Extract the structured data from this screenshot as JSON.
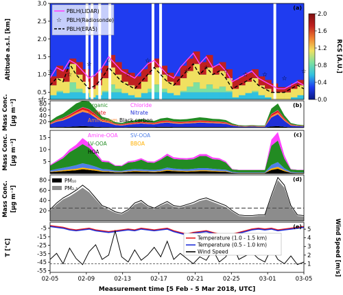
{
  "chart_data": [
    {
      "id": "a",
      "type": "heatmap",
      "panel_label": "(a)",
      "ylabel": "Altitude a.s.l. [km]",
      "yticks": [
        "3.0",
        "2.5",
        "2.0",
        "1.5",
        "1.0",
        "0.5",
        "sfc"
      ],
      "ylim": [
        0.3,
        3.0
      ],
      "colorbar": {
        "label": "RCS [A.U.]",
        "ticks": [
          "2.0",
          "1.6",
          "1.2",
          "0.8",
          "0.4",
          "0.0"
        ],
        "range": [
          0.0,
          2.0
        ]
      },
      "series": [
        {
          "name": "PBLH(LIDAR)",
          "color": "#ff44ff",
          "values": [
            0.9,
            1.2,
            1.1,
            1.4,
            1.3,
            1.1,
            0.9,
            1.0,
            1.2,
            1.5,
            1.3,
            1.1,
            1.0,
            0.9,
            1.1,
            1.3,
            1.4,
            1.2,
            1.0,
            0.9,
            1.2,
            1.4,
            1.6,
            1.3,
            1.5,
            1.2,
            1.3,
            1.1,
            0.8,
            0.9,
            1.0,
            1.1,
            0.9,
            0.8,
            0.7,
            0.6,
            0.6,
            0.7,
            0.8,
            0.7
          ]
        },
        {
          "name": "PBLH(Radiosonde)",
          "marker": "star",
          "values": [
            1.1,
            1.5,
            1.7,
            1.0,
            1.2,
            0.9,
            1.3,
            1.0,
            1.5,
            1.4,
            0.8,
            1.1,
            1.0,
            0.9,
            1.3,
            1.4,
            1.3,
            1.2,
            1.0,
            0.9,
            1.2,
            1.1,
            1.4,
            1.3,
            1.2,
            1.5,
            1.3,
            1.1,
            0.9,
            0.8,
            1.0,
            1.0,
            0.9,
            1.0,
            0.8,
            0.7,
            0.9,
            0.8,
            1.0,
            1.1
          ]
        },
        {
          "name": "PBLH(ERA5)",
          "color": "#000000",
          "dash": true,
          "values": [
            0.7,
            0.9,
            0.8,
            1.3,
            1.0,
            0.8,
            0.6,
            0.7,
            0.9,
            1.2,
            1.0,
            0.8,
            0.7,
            0.6,
            0.8,
            1.0,
            1.2,
            1.0,
            0.8,
            0.7,
            0.9,
            1.1,
            1.3,
            1.0,
            1.2,
            1.0,
            1.1,
            0.9,
            0.6,
            0.7,
            0.8,
            0.9,
            0.7,
            0.6,
            0.5,
            0.5,
            0.5,
            0.6,
            0.7,
            0.6
          ]
        }
      ]
    },
    {
      "id": "b",
      "type": "area",
      "panel_label": "(b)",
      "ylabel": "Mass Conc. [μg m⁻³]",
      "yticks": [
        "20",
        "40",
        "60",
        "80"
      ],
      "ylim": [
        0,
        90
      ],
      "series": [
        {
          "name": "Black carbon",
          "color": "#000000",
          "values": [
            1,
            2,
            2,
            3,
            4,
            5,
            4,
            3,
            2,
            2,
            1,
            1,
            2,
            2,
            2,
            2,
            2,
            3,
            3,
            2,
            2,
            2,
            2,
            2,
            2,
            2,
            2,
            2,
            1,
            1,
            1,
            1,
            1,
            1,
            4,
            5,
            3,
            1,
            1,
            1
          ]
        },
        {
          "name": "Nitrate",
          "color": "#1f2fd8",
          "values": [
            10,
            18,
            22,
            30,
            40,
            48,
            44,
            30,
            18,
            14,
            8,
            6,
            8,
            10,
            12,
            10,
            9,
            12,
            14,
            12,
            11,
            12,
            13,
            15,
            14,
            13,
            12,
            11,
            6,
            3,
            2,
            3,
            2,
            2,
            30,
            40,
            20,
            6,
            4,
            3
          ]
        },
        {
          "name": "Ammonium",
          "color": "#ff8c3a",
          "values": [
            2,
            3,
            4,
            5,
            6,
            7,
            6,
            5,
            3,
            3,
            2,
            2,
            2,
            2,
            3,
            2,
            2,
            3,
            3,
            3,
            3,
            3,
            3,
            3,
            3,
            3,
            3,
            2,
            1,
            1,
            1,
            1,
            1,
            1,
            5,
            6,
            4,
            2,
            1,
            1
          ]
        },
        {
          "name": "Sulfate",
          "color": "#e41a1c",
          "values": [
            2,
            3,
            4,
            5,
            6,
            8,
            7,
            5,
            3,
            3,
            2,
            2,
            3,
            3,
            3,
            3,
            3,
            4,
            4,
            3,
            3,
            3,
            4,
            4,
            4,
            3,
            3,
            3,
            2,
            1,
            1,
            1,
            1,
            1,
            6,
            7,
            4,
            2,
            1,
            1
          ]
        },
        {
          "name": "Chloride",
          "color": "#ff44ff",
          "values": [
            0.5,
            0.5,
            1,
            1,
            1,
            1,
            1,
            1,
            0.5,
            0.5,
            0.5,
            0.5,
            0.5,
            0.5,
            0.5,
            0.5,
            0.5,
            0.5,
            0.5,
            0.5,
            0.5,
            0.5,
            0.5,
            0.5,
            0.5,
            0.5,
            0.5,
            0.5,
            0.2,
            0.2,
            0.2,
            0.2,
            0.2,
            0.2,
            1,
            1,
            0.5,
            0.2,
            0.2,
            0.2
          ]
        },
        {
          "name": "Organic",
          "color": "#228b22",
          "values": [
            6,
            10,
            14,
            20,
            24,
            30,
            26,
            18,
            10,
            8,
            5,
            4,
            6,
            7,
            8,
            7,
            6,
            8,
            9,
            8,
            8,
            8,
            9,
            10,
            9,
            8,
            8,
            7,
            4,
            2,
            2,
            2,
            2,
            2,
            18,
            22,
            10,
            4,
            3,
            2
          ]
        }
      ]
    },
    {
      "id": "c",
      "type": "area",
      "panel_label": "(c)",
      "ylabel": "Mass Conc. [μg m⁻³]",
      "yticks": [
        "5",
        "10",
        "15"
      ],
      "ylim": [
        0,
        18
      ],
      "series": [
        {
          "name": "HOA",
          "color": "#000000",
          "values": [
            0.6,
            0.8,
            1.0,
            1.2,
            1.4,
            1.8,
            1.5,
            1.2,
            0.8,
            0.7,
            0.5,
            0.5,
            0.7,
            0.9,
            0.8,
            0.7,
            0.6,
            0.8,
            1.2,
            1.0,
            0.9,
            0.8,
            0.9,
            1.0,
            1.0,
            0.9,
            0.8,
            0.7,
            0.3,
            0.2,
            0.2,
            0.2,
            0.2,
            0.2,
            1.5,
            2.0,
            1.0,
            0.3,
            0.2,
            0.2
          ]
        },
        {
          "name": "BBOA",
          "color": "#ffb000",
          "values": [
            0.2,
            0.3,
            0.4,
            0.5,
            0.6,
            0.7,
            0.6,
            0.5,
            0.3,
            0.3,
            0.2,
            0.2,
            0.3,
            0.3,
            0.3,
            0.3,
            0.3,
            0.3,
            0.4,
            0.3,
            0.3,
            0.3,
            0.3,
            0.4,
            0.4,
            0.3,
            0.3,
            0.3,
            0.1,
            0.1,
            0.1,
            0.1,
            0.1,
            0.1,
            0.6,
            0.8,
            0.4,
            0.1,
            0.1,
            0.1
          ]
        },
        {
          "name": "SV-OOA",
          "color": "#4f7fe8",
          "values": [
            0.5,
            0.8,
            1.0,
            1.2,
            1.5,
            1.8,
            1.6,
            1.2,
            0.8,
            0.7,
            0.5,
            0.4,
            0.6,
            0.7,
            0.7,
            0.6,
            0.6,
            0.7,
            0.9,
            0.8,
            0.7,
            0.7,
            0.8,
            0.9,
            0.9,
            0.8,
            0.7,
            0.6,
            0.3,
            0.2,
            0.2,
            0.2,
            0.2,
            0.2,
            1.5,
            2.0,
            0.8,
            0.3,
            0.2,
            0.2
          ]
        },
        {
          "name": "LV-OOA",
          "color": "#228b22",
          "values": [
            2,
            3,
            4,
            6,
            7,
            8,
            7,
            5,
            3,
            3,
            2,
            2,
            3,
            3,
            4,
            3,
            3,
            4,
            5,
            4,
            4,
            4,
            4,
            5,
            5,
            4,
            4,
            3,
            1,
            1,
            1,
            1,
            1,
            1,
            8,
            9,
            4,
            1,
            1,
            1
          ]
        },
        {
          "name": "Amine-OOA",
          "color": "#ff44ff",
          "values": [
            0.3,
            0.5,
            0.8,
            1.2,
            1.5,
            2.5,
            2.0,
            1.2,
            0.6,
            0.5,
            0.3,
            0.3,
            0.5,
            0.6,
            0.6,
            0.5,
            0.5,
            0.6,
            0.8,
            0.7,
            0.6,
            0.6,
            0.7,
            0.8,
            0.8,
            0.7,
            0.6,
            0.5,
            0.2,
            0.1,
            0.1,
            0.1,
            0.1,
            0.1,
            2.5,
            3.5,
            1.5,
            0.2,
            0.1,
            0.1
          ]
        }
      ]
    },
    {
      "id": "d",
      "type": "area",
      "panel_label": "(d)",
      "ylabel": "Mass Conc. [μg m⁻³]",
      "yticks": [
        "20",
        "40",
        "60",
        "80"
      ],
      "ylim": [
        0,
        90
      ],
      "reference_line": 25,
      "series": [
        {
          "name": "PM₁₀",
          "color": "#000000",
          "values": [
            22,
            35,
            45,
            52,
            60,
            70,
            60,
            45,
            30,
            25,
            18,
            15,
            22,
            35,
            40,
            30,
            25,
            32,
            38,
            30,
            28,
            32,
            36,
            42,
            45,
            40,
            35,
            30,
            20,
            12,
            10,
            10,
            12,
            12,
            50,
            85,
            70,
            30,
            12,
            10
          ]
        },
        {
          "name": "PM₂.₅",
          "color": "#8c8c8c",
          "values": [
            20,
            32,
            42,
            48,
            56,
            65,
            56,
            42,
            28,
            22,
            16,
            13,
            20,
            32,
            37,
            28,
            23,
            30,
            35,
            28,
            26,
            30,
            33,
            39,
            42,
            37,
            32,
            27,
            18,
            10,
            8,
            8,
            10,
            10,
            46,
            80,
            65,
            27,
            10,
            8
          ]
        }
      ]
    },
    {
      "id": "e",
      "type": "line",
      "panel_label": "(e)",
      "ylabel": "T [°C]",
      "y2label": "Wind Speed [m/s]",
      "yticks": [
        "-5",
        "-15",
        "-25",
        "-35",
        "-45",
        "-55"
      ],
      "ylim": [
        -57,
        2
      ],
      "y2ticks": [
        "5",
        "4",
        "3",
        "2",
        "1"
      ],
      "y2lim": [
        0,
        5.8
      ],
      "series": [
        {
          "name": "Temperature (1.0 - 1.5 km)",
          "color": "#e41a1c",
          "axis": "y",
          "values": [
            -2,
            -3,
            -4,
            -6,
            -7,
            -6,
            -5,
            -7,
            -8,
            -9,
            -8,
            -7,
            -6,
            -7,
            -5,
            -6,
            -7,
            -6,
            -5,
            -8,
            -10,
            -12,
            -10,
            -9,
            -8,
            -10,
            -12,
            -14,
            -12,
            -10,
            -8,
            -6,
            -5,
            -6,
            -5,
            -7,
            -6,
            -5,
            -4,
            -3
          ]
        },
        {
          "name": "Temperature (0.5 - 1.0 km)",
          "color": "#1f2fd8",
          "axis": "y",
          "values": [
            -3,
            -4,
            -5,
            -7,
            -8,
            -7,
            -6,
            -8,
            -9,
            -10,
            -9,
            -8,
            -7,
            -8,
            -6,
            -7,
            -8,
            -7,
            -6,
            -9,
            -11,
            -13,
            -11,
            -10,
            -9,
            -11,
            -13,
            -15,
            -13,
            -11,
            -9,
            -7,
            -6,
            -7,
            -6,
            -8,
            -7,
            -6,
            -5,
            -4
          ]
        },
        {
          "name": "Wind Speed",
          "color": "#000000",
          "axis": "y2",
          "values": [
            1.5,
            2.2,
            1.0,
            2.8,
            1.6,
            0.9,
            2.4,
            3.2,
            1.5,
            2.0,
            4.8,
            1.8,
            1.2,
            2.6,
            1.4,
            2.0,
            2.9,
            1.8,
            3.6,
            1.5,
            2.2,
            1.6,
            1.0,
            1.8,
            1.4,
            2.6,
            1.2,
            1.8,
            3.4,
            1.5,
            1.9,
            2.3,
            1.6,
            1.2,
            2.8,
            1.5,
            1.0,
            1.9,
            0.9,
            1.2
          ]
        }
      ]
    }
  ],
  "x_axis": {
    "label": "Measurement time [5 Feb - 5 Mar 2018, UTC]",
    "ticks": [
      "02-05",
      "02-09",
      "02-13",
      "02-17",
      "02-21",
      "02-25",
      "03-01",
      "03-05"
    ]
  }
}
